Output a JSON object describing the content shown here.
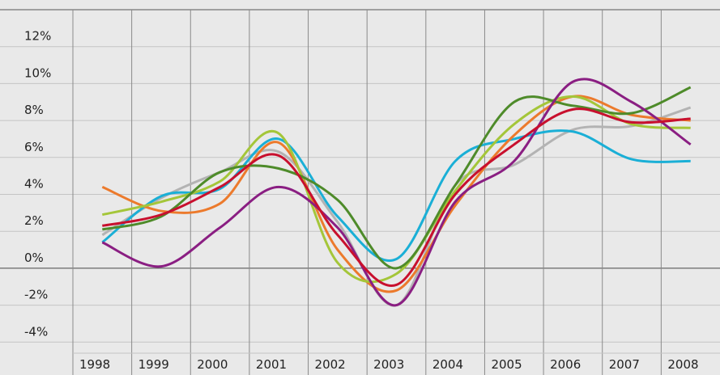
{
  "chart_data": {
    "type": "line",
    "categories": [
      "1998",
      "1999",
      "2000",
      "2001",
      "2002",
      "2003",
      "2004",
      "2005",
      "2006",
      "2007",
      "2008"
    ],
    "series": [
      {
        "color": "#b3b3b3",
        "values": [
          1.8,
          3.8,
          5.2,
          6.3,
          2.5,
          -2.0,
          4.5,
          5.6,
          7.5,
          7.7,
          8.7
        ]
      },
      {
        "color": "#1aafd6",
        "values": [
          1.4,
          3.9,
          4.3,
          7.0,
          2.8,
          0.5,
          5.8,
          7.0,
          7.4,
          5.9,
          5.8
        ]
      },
      {
        "color": "#ec7a2c",
        "values": [
          4.4,
          3.1,
          3.5,
          6.8,
          1.0,
          -1.2,
          3.4,
          7.2,
          9.3,
          8.3,
          8.0
        ]
      },
      {
        "color": "#a4c639",
        "values": [
          2.9,
          3.6,
          4.7,
          7.3,
          0.3,
          -0.3,
          4.2,
          7.8,
          9.3,
          7.8,
          7.6
        ]
      },
      {
        "color": "#4e8b2a",
        "values": [
          2.1,
          2.8,
          5.2,
          5.4,
          3.7,
          0.0,
          4.5,
          9.0,
          8.8,
          8.4,
          9.8
        ]
      },
      {
        "color": "#8a1e82",
        "values": [
          1.4,
          0.1,
          2.2,
          4.4,
          2.2,
          -2.0,
          3.6,
          5.8,
          10.1,
          9.0,
          6.7
        ]
      },
      {
        "color": "#c8102e",
        "values": [
          2.3,
          2.9,
          4.4,
          6.1,
          1.8,
          -0.9,
          4.0,
          6.7,
          8.6,
          7.9,
          8.1
        ]
      }
    ],
    "ylim": [
      -4.6,
      14
    ],
    "yticks": [
      {
        "value": -4,
        "label": "-4%"
      },
      {
        "value": -2,
        "label": "-2%"
      },
      {
        "value": 0,
        "label": "0%"
      },
      {
        "value": 2,
        "label": "2%"
      },
      {
        "value": 4,
        "label": "4%"
      },
      {
        "value": 6,
        "label": "6%"
      },
      {
        "value": 8,
        "label": "8%"
      },
      {
        "value": 10,
        "label": "10%"
      },
      {
        "value": 12,
        "label": "12%"
      }
    ],
    "grid": true
  }
}
